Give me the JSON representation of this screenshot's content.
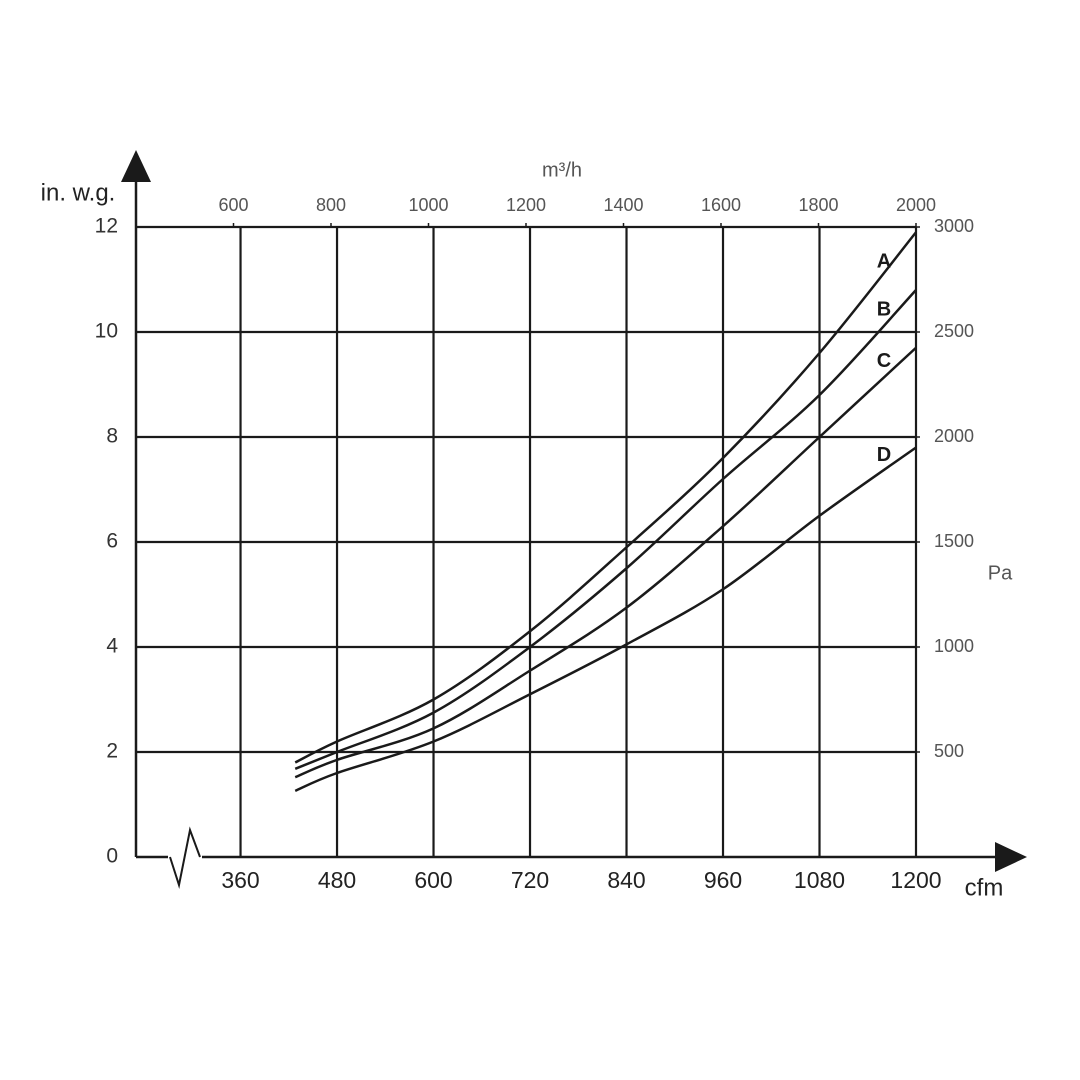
{
  "chart_data": {
    "type": "line",
    "x_label": "cfm",
    "y_label": "in. w.g.",
    "x2_label": "m³/h",
    "y2_label": "Pa",
    "x": [
      428,
      480,
      600,
      720,
      840,
      960,
      1080,
      1200
    ],
    "series": [
      {
        "name": "A",
        "color": "#1a1a1a",
        "values": [
          1.8,
          2.2,
          3.0,
          4.3,
          5.9,
          7.6,
          9.6,
          11.9
        ]
      },
      {
        "name": "B",
        "color": "#1a1a1a",
        "values": [
          1.68,
          2.0,
          2.75,
          4.0,
          5.5,
          7.2,
          8.8,
          10.8
        ]
      },
      {
        "name": "C",
        "color": "#1a1a1a",
        "values": [
          1.52,
          1.85,
          2.45,
          3.55,
          4.75,
          6.3,
          8.0,
          9.7
        ]
      },
      {
        "name": "D",
        "color": "#1a1a1a",
        "values": [
          1.26,
          1.6,
          2.2,
          3.1,
          4.05,
          5.1,
          6.5,
          7.8
        ]
      }
    ],
    "xlim": [
      230,
      1200
    ],
    "xticks": [
      360,
      480,
      600,
      720,
      840,
      960,
      1080,
      1200
    ],
    "ylim": [
      0,
      12
    ],
    "yticks": [
      0,
      2,
      4,
      6,
      8,
      10,
      12
    ],
    "x2lim": [
      400,
      2000
    ],
    "x2ticks": [
      600,
      800,
      1000,
      1200,
      1400,
      1600,
      1800,
      2000
    ],
    "y2lim": [
      0,
      3000
    ],
    "y2ticks": [
      500,
      1000,
      1500,
      2000,
      2500,
      3000
    ],
    "grid": true
  }
}
